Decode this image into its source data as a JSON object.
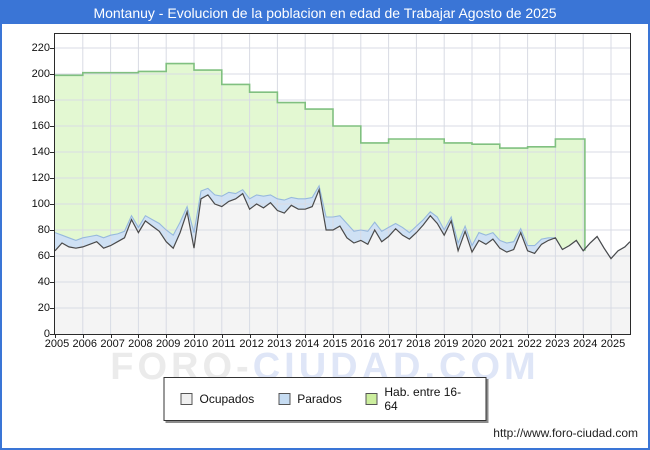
{
  "window": {
    "title": "Montanuy - Evolucion de la poblacion en edad de Trabajar Agosto de 2025"
  },
  "watermark": {
    "part1": "FORO-",
    "part2": "CIUDAD.COM"
  },
  "footer": {
    "url": "http://www.foro-ciudad.com"
  },
  "colors": {
    "frame_blue": "#3a75d6",
    "grid": "#d8dbe4",
    "green_fill": "#e3f8d2",
    "green_line": "#80c080",
    "blue_fill": "#cfe1f4",
    "blue_line": "#97b9dd",
    "gray_fill": "#f4f4f4",
    "dark_line": "#4a4a4a"
  },
  "legend": {
    "items": [
      {
        "id": "ocupados",
        "label": "Ocupados",
        "swatch": "#f0f0f0"
      },
      {
        "id": "parados",
        "label": "Parados",
        "swatch": "#c6dcf2"
      },
      {
        "id": "hab-16-64",
        "label": "Hab. entre 16-64",
        "swatch": "#ccee9e"
      }
    ]
  },
  "chart_data": {
    "type": "area",
    "title": "Montanuy - Evolucion de la poblacion en edad de Trabajar Agosto de 2025",
    "xlabel": "",
    "ylabel": "",
    "grid": true,
    "legend_position": "bottom",
    "xlim": [
      2005,
      2025.68
    ],
    "ylim": [
      0,
      230
    ],
    "x_ticks": [
      2005,
      2006,
      2007,
      2008,
      2009,
      2010,
      2011,
      2012,
      2013,
      2014,
      2015,
      2016,
      2017,
      2018,
      2019,
      2020,
      2021,
      2022,
      2023,
      2024,
      2025
    ],
    "y_ticks": [
      0,
      20,
      40,
      60,
      80,
      100,
      120,
      140,
      160,
      180,
      200,
      220
    ],
    "series": [
      {
        "name": "Hab. entre 16-64",
        "type": "annual-step-area",
        "start_year": 2005,
        "end_x": 2024.06,
        "values": [
          199,
          201,
          201,
          202,
          208,
          203,
          192,
          186,
          178,
          173,
          160,
          147,
          150,
          150,
          147,
          146,
          143,
          144,
          150
        ],
        "fill": "#e3f8d2",
        "line": "#80c080"
      },
      {
        "name": "Ocupados",
        "type": "line-area",
        "x_start": 2005.0,
        "x_step": 0.25,
        "values": [
          64,
          70,
          67,
          66,
          67,
          69,
          71,
          66,
          68,
          71,
          74,
          88,
          78,
          87,
          83,
          79,
          71,
          66,
          78,
          94,
          66,
          104,
          107,
          100,
          98,
          102,
          104,
          108,
          96,
          100,
          97,
          101,
          95,
          93,
          99,
          96,
          96,
          98,
          111,
          80,
          80,
          83,
          74,
          70,
          72,
          69,
          80,
          71,
          75,
          81,
          76,
          73,
          78,
          84,
          91,
          85,
          76,
          87,
          64,
          79,
          63,
          72,
          69,
          73,
          66,
          63,
          65,
          78,
          64,
          62,
          69,
          72,
          74,
          65,
          68,
          72,
          64,
          70,
          75,
          66,
          58,
          64,
          67,
          71
        ],
        "fill": "#f4f4f4",
        "line": "#4a4a4a"
      },
      {
        "name": "Parados",
        "type": "stacked-on-ocupados",
        "x_start": 2005.0,
        "x_step": 0.25,
        "values": [
          14,
          6,
          7,
          6,
          7,
          6,
          5,
          8,
          8,
          6,
          5,
          3,
          4,
          4,
          5,
          6,
          9,
          10,
          8,
          4,
          12,
          6,
          5,
          7,
          8,
          7,
          4,
          3,
          8,
          7,
          9,
          6,
          9,
          10,
          6,
          8,
          8,
          7,
          3,
          10,
          10,
          8,
          11,
          9,
          8,
          10,
          6,
          8,
          7,
          4,
          6,
          5,
          5,
          4,
          3,
          5,
          4,
          3,
          6,
          4,
          5,
          6,
          7,
          5,
          6,
          7,
          6,
          3,
          4,
          6,
          4,
          2,
          0,
          0,
          0,
          0,
          0,
          0,
          0,
          0,
          0,
          0,
          0,
          0
        ],
        "fill": "#cfe1f4",
        "line": "#97b9dd"
      }
    ]
  }
}
